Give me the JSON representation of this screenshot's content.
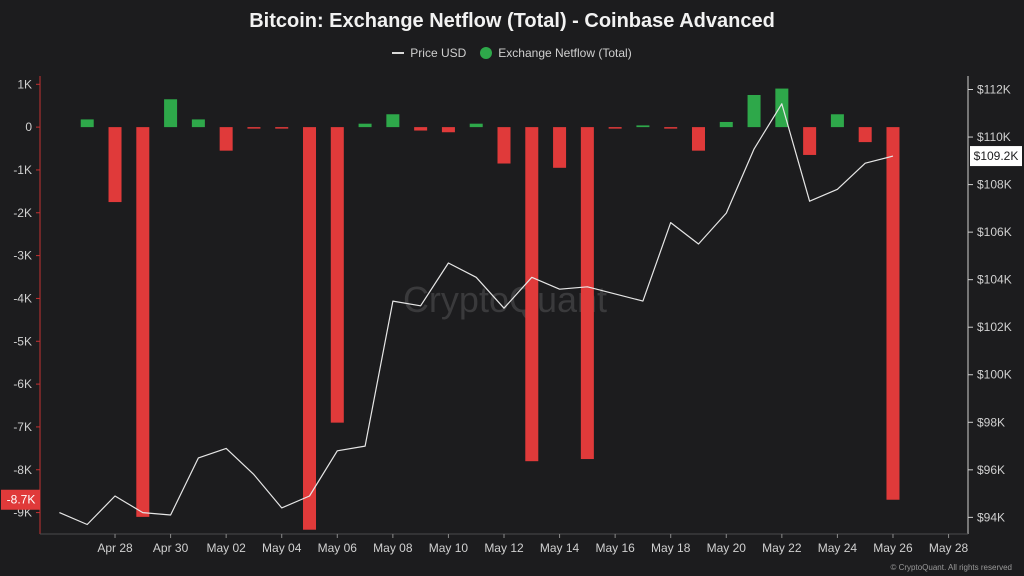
{
  "chart_data": {
    "type": "bar",
    "title": "Bitcoin: Exchange Netflow (Total) - Coinbase Advanced",
    "legend": [
      {
        "name": "Price USD",
        "color": "#d8d8d8",
        "marker": "line"
      },
      {
        "name": "Exchange Netflow (Total)",
        "color": "#2ea84a",
        "marker": "dot"
      }
    ],
    "legend_position": "top-center",
    "x_labels": [
      "Apr 28",
      "Apr 30",
      "May 02",
      "May 04",
      "May 06",
      "May 08",
      "May 10",
      "May 12",
      "May 14",
      "May 16",
      "May 18",
      "May 20",
      "May 22",
      "May 24",
      "May 26",
      "May 28"
    ],
    "left_axis": {
      "ticks": [
        "1K",
        "0",
        "-1K",
        "-2K",
        "-3K",
        "-4K",
        "-5K",
        "-6K",
        "-7K",
        "-8K",
        "-9K"
      ],
      "ylim": [
        -9500,
        1100
      ],
      "highlight_label": "-8.7K"
    },
    "right_axis": {
      "ticks": [
        "$112K",
        "$110K",
        "$108K",
        "$106K",
        "$104K",
        "$102K",
        "$100K",
        "$98K",
        "$96K",
        "$94K"
      ],
      "ylim": [
        93300,
        112400
      ],
      "current_price_label": "$109.2K"
    },
    "positive_color": "#2ea84a",
    "negative_color": "#e03a3a",
    "series": [
      {
        "name": "Exchange Netflow (Total)",
        "dates": [
          "Apr 27",
          "Apr 28",
          "Apr 29",
          "Apr 30",
          "May 01",
          "May 02",
          "May 03",
          "May 04",
          "May 05",
          "May 06",
          "May 07",
          "May 08",
          "May 09",
          "May 10",
          "May 11",
          "May 12",
          "May 13",
          "May 14",
          "May 15",
          "May 16",
          "May 17",
          "May 18",
          "May 19",
          "May 20",
          "May 21",
          "May 22",
          "May 23",
          "May 24",
          "May 25",
          "May 26"
        ],
        "values": [
          180,
          -1750,
          -9100,
          650,
          180,
          -550,
          -30,
          -30,
          -9400,
          -6900,
          80,
          300,
          -80,
          -120,
          80,
          -850,
          -7800,
          -950,
          -7750,
          -30,
          40,
          -30,
          -550,
          120,
          750,
          900,
          -650,
          300,
          -350,
          -8700
        ]
      },
      {
        "name": "Price USD",
        "dates": [
          "Apr 26",
          "Apr 27",
          "Apr 28",
          "Apr 29",
          "Apr 30",
          "May 01",
          "May 02",
          "May 03",
          "May 04",
          "May 05",
          "May 06",
          "May 07",
          "May 08",
          "May 09",
          "May 10",
          "May 11",
          "May 12",
          "May 13",
          "May 14",
          "May 15",
          "May 16",
          "May 17",
          "May 18",
          "May 19",
          "May 20",
          "May 21",
          "May 22",
          "May 23",
          "May 24",
          "May 25",
          "May 26"
        ],
        "values": [
          94200,
          93700,
          94900,
          94200,
          94100,
          96500,
          96900,
          95800,
          94400,
          94900,
          96800,
          97000,
          103100,
          102900,
          104700,
          104100,
          102800,
          104100,
          103600,
          103700,
          103400,
          103100,
          106400,
          105500,
          106800,
          109500,
          111400,
          107300,
          107800,
          108900,
          109200
        ]
      }
    ],
    "watermark": "CryptoQuant",
    "footer": "© CryptoQuant. All rights reserved"
  }
}
